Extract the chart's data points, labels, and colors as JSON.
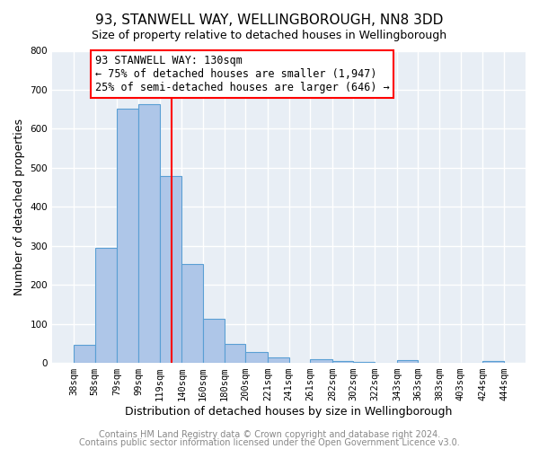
{
  "title": "93, STANWELL WAY, WELLINGBOROUGH, NN8 3DD",
  "subtitle": "Size of property relative to detached houses in Wellingborough",
  "xlabel": "Distribution of detached houses by size in Wellingborough",
  "ylabel": "Number of detached properties",
  "bin_edges": [
    38,
    58,
    79,
    99,
    119,
    140,
    160,
    180,
    200,
    221,
    241,
    261,
    282,
    302,
    322,
    343,
    363,
    383,
    403,
    424,
    444
  ],
  "bin_labels": [
    "38sqm",
    "58sqm",
    "79sqm",
    "99sqm",
    "119sqm",
    "140sqm",
    "160sqm",
    "180sqm",
    "200sqm",
    "221sqm",
    "241sqm",
    "261sqm",
    "282sqm",
    "302sqm",
    "322sqm",
    "343sqm",
    "363sqm",
    "383sqm",
    "403sqm",
    "424sqm",
    "444sqm"
  ],
  "bar_heights": [
    47,
    295,
    651,
    663,
    480,
    253,
    113,
    48,
    28,
    15,
    0,
    10,
    5,
    3,
    0,
    7,
    0,
    0,
    0,
    5
  ],
  "bar_color": "#aec6e8",
  "bar_edge_color": "#5a9fd4",
  "vline_x": 130,
  "vline_color": "red",
  "ylim": [
    0,
    800
  ],
  "yticks": [
    0,
    100,
    200,
    300,
    400,
    500,
    600,
    700,
    800
  ],
  "annotation_box_text": "93 STANWELL WAY: 130sqm\n← 75% of detached houses are smaller (1,947)\n25% of semi-detached houses are larger (646) →",
  "footer_line1": "Contains HM Land Registry data © Crown copyright and database right 2024.",
  "footer_line2": "Contains public sector information licensed under the Open Government Licence v3.0.",
  "background_color": "#ffffff",
  "plot_bg_color": "#e8eef5",
  "grid_color": "#ffffff",
  "title_fontsize": 11,
  "subtitle_fontsize": 9,
  "axis_label_fontsize": 9,
  "tick_fontsize": 7.5,
  "footer_fontsize": 7,
  "annotation_fontsize": 8.5
}
